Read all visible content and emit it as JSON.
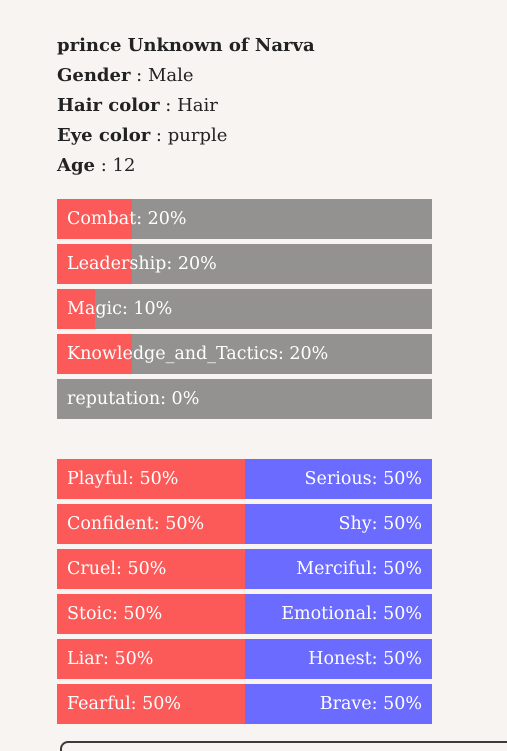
{
  "profile": {
    "name": "prince Unknown of Narva",
    "gender_label": "Gender",
    "gender": "Male",
    "hair_label": "Hair color",
    "hair": "Hair",
    "eye_label": "Eye color",
    "eye": "purple",
    "age_label": "Age",
    "age": "12"
  },
  "stats": [
    {
      "label": "Combat: 20%",
      "percent": 20
    },
    {
      "label": "Leadership: 20%",
      "percent": 20
    },
    {
      "label": "Magic: 10%",
      "percent": 10
    },
    {
      "label": "Knowledge_and_Tactics: 20%",
      "percent": 20
    },
    {
      "label": "reputation: 0%",
      "percent": 0
    }
  ],
  "traits": [
    {
      "left": "Playful: 50%",
      "right": "Serious: 50%",
      "percent": 50
    },
    {
      "left": "Confident: 50%",
      "right": "Shy: 50%",
      "percent": 50
    },
    {
      "left": "Cruel: 50%",
      "right": "Merciful: 50%",
      "percent": 50
    },
    {
      "left": "Stoic: 50%",
      "right": "Emotional: 50%",
      "percent": 50
    },
    {
      "left": "Liar: 50%",
      "right": "Honest: 50%",
      "percent": 50
    },
    {
      "left": "Fearful: 50%",
      "right": "Brave: 50%",
      "percent": 50
    }
  ],
  "colors": {
    "stat_fill": "#fb5a59",
    "stat_track": "#939290",
    "trait_left": "#fb5a59",
    "trait_right": "#6b6bff"
  }
}
